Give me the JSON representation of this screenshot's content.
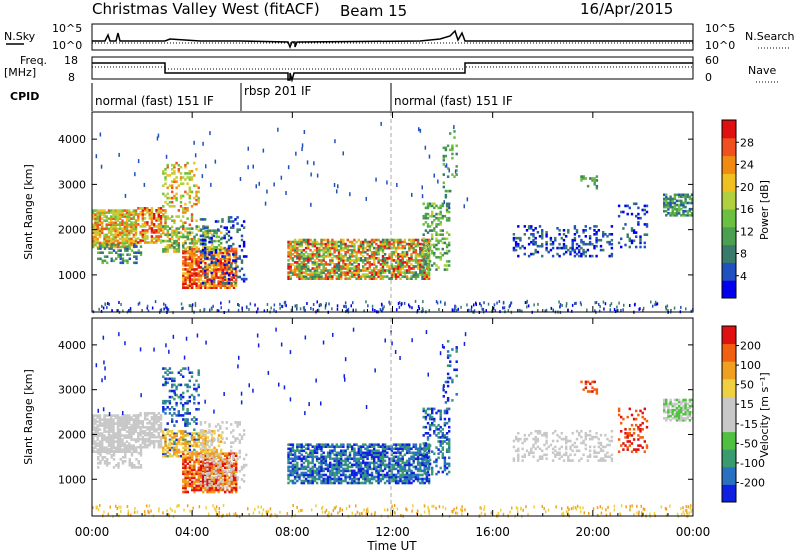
{
  "header": {
    "title": "Christmas Valley West (fitACF)",
    "beam": "Beam 15",
    "date": "16/Apr/2015"
  },
  "noise_panel": {
    "left_label": "N.Sky",
    "right_label": "N.Search",
    "ticks_left": [
      "10^5",
      "10^0"
    ],
    "ticks_right": [
      "10^5",
      "10^0"
    ]
  },
  "freq_panel": {
    "left_label": "Freq.",
    "left_unit": "[MHz]",
    "ticks_left": [
      "18",
      "8"
    ],
    "ticks_right": [
      "60",
      "0"
    ],
    "right_label": "Nave"
  },
  "cpid": {
    "label": "CPID",
    "segments": [
      "normal (fast) 151 IF",
      "rbsp 201 IF",
      "normal (fast) 151 IF"
    ]
  },
  "chart_data": [
    {
      "type": "heatmap",
      "ylabel": "Slant Range [km]",
      "yticks": [
        "4000",
        "3000",
        "2000",
        "1000"
      ],
      "ylim": [
        180,
        4600
      ],
      "colorbar": {
        "label": "Power [dB]",
        "ticks": [
          "28",
          "24",
          "20",
          "16",
          "12",
          "8",
          "4"
        ],
        "colors": [
          "#0000ee",
          "#2050c0",
          "#3a7a6a",
          "#4aa050",
          "#6cc040",
          "#b0d040",
          "#f0c020",
          "#f08a10",
          "#f05020",
          "#e01010"
        ]
      }
    },
    {
      "type": "heatmap",
      "ylabel": "Slant Range [km]",
      "yticks": [
        "4000",
        "3000",
        "2000",
        "1000"
      ],
      "ylim": [
        180,
        4600
      ],
      "colorbar": {
        "label": "Velocity [m s⁻¹]",
        "ticks": [
          "200",
          "100",
          "50",
          "15",
          "-15",
          "-50",
          "-100",
          "-200"
        ],
        "colors": [
          "#1020e0",
          "#2a70c0",
          "#3a9a70",
          "#50c040",
          "#c8c8c8",
          "#c8c8c8",
          "#f0d040",
          "#f0a020",
          "#f06010",
          "#e01010"
        ]
      }
    }
  ],
  "xaxis": {
    "label": "Time UT",
    "ticks": [
      "00:00",
      "04:00",
      "08:00",
      "12:00",
      "16:00",
      "20:00",
      "00:00"
    ]
  }
}
